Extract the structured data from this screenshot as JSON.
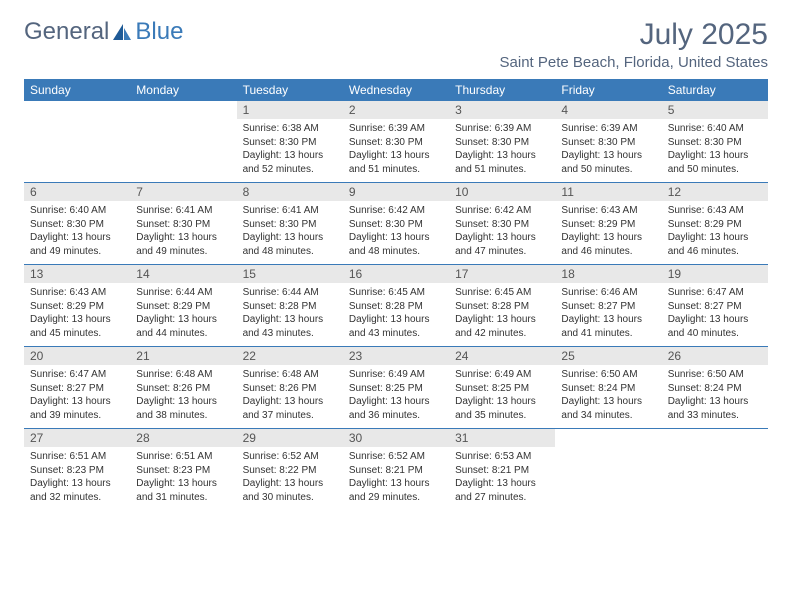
{
  "brand": {
    "part1": "General",
    "part2": "Blue"
  },
  "title": "July 2025",
  "location": "Saint Pete Beach, Florida, United States",
  "colors": {
    "header_bg": "#3a7ab8",
    "header_text": "#ffffff",
    "daynum_bg": "#e8e8e8",
    "title_color": "#54657e",
    "rule_color": "#3a7ab8"
  },
  "columns": [
    "Sunday",
    "Monday",
    "Tuesday",
    "Wednesday",
    "Thursday",
    "Friday",
    "Saturday"
  ],
  "weeks": [
    [
      {
        "n": "",
        "sr": "",
        "ss": "",
        "dl": ""
      },
      {
        "n": "",
        "sr": "",
        "ss": "",
        "dl": ""
      },
      {
        "n": "1",
        "sr": "Sunrise: 6:38 AM",
        "ss": "Sunset: 8:30 PM",
        "dl": "Daylight: 13 hours and 52 minutes."
      },
      {
        "n": "2",
        "sr": "Sunrise: 6:39 AM",
        "ss": "Sunset: 8:30 PM",
        "dl": "Daylight: 13 hours and 51 minutes."
      },
      {
        "n": "3",
        "sr": "Sunrise: 6:39 AM",
        "ss": "Sunset: 8:30 PM",
        "dl": "Daylight: 13 hours and 51 minutes."
      },
      {
        "n": "4",
        "sr": "Sunrise: 6:39 AM",
        "ss": "Sunset: 8:30 PM",
        "dl": "Daylight: 13 hours and 50 minutes."
      },
      {
        "n": "5",
        "sr": "Sunrise: 6:40 AM",
        "ss": "Sunset: 8:30 PM",
        "dl": "Daylight: 13 hours and 50 minutes."
      }
    ],
    [
      {
        "n": "6",
        "sr": "Sunrise: 6:40 AM",
        "ss": "Sunset: 8:30 PM",
        "dl": "Daylight: 13 hours and 49 minutes."
      },
      {
        "n": "7",
        "sr": "Sunrise: 6:41 AM",
        "ss": "Sunset: 8:30 PM",
        "dl": "Daylight: 13 hours and 49 minutes."
      },
      {
        "n": "8",
        "sr": "Sunrise: 6:41 AM",
        "ss": "Sunset: 8:30 PM",
        "dl": "Daylight: 13 hours and 48 minutes."
      },
      {
        "n": "9",
        "sr": "Sunrise: 6:42 AM",
        "ss": "Sunset: 8:30 PM",
        "dl": "Daylight: 13 hours and 48 minutes."
      },
      {
        "n": "10",
        "sr": "Sunrise: 6:42 AM",
        "ss": "Sunset: 8:30 PM",
        "dl": "Daylight: 13 hours and 47 minutes."
      },
      {
        "n": "11",
        "sr": "Sunrise: 6:43 AM",
        "ss": "Sunset: 8:29 PM",
        "dl": "Daylight: 13 hours and 46 minutes."
      },
      {
        "n": "12",
        "sr": "Sunrise: 6:43 AM",
        "ss": "Sunset: 8:29 PM",
        "dl": "Daylight: 13 hours and 46 minutes."
      }
    ],
    [
      {
        "n": "13",
        "sr": "Sunrise: 6:43 AM",
        "ss": "Sunset: 8:29 PM",
        "dl": "Daylight: 13 hours and 45 minutes."
      },
      {
        "n": "14",
        "sr": "Sunrise: 6:44 AM",
        "ss": "Sunset: 8:29 PM",
        "dl": "Daylight: 13 hours and 44 minutes."
      },
      {
        "n": "15",
        "sr": "Sunrise: 6:44 AM",
        "ss": "Sunset: 8:28 PM",
        "dl": "Daylight: 13 hours and 43 minutes."
      },
      {
        "n": "16",
        "sr": "Sunrise: 6:45 AM",
        "ss": "Sunset: 8:28 PM",
        "dl": "Daylight: 13 hours and 43 minutes."
      },
      {
        "n": "17",
        "sr": "Sunrise: 6:45 AM",
        "ss": "Sunset: 8:28 PM",
        "dl": "Daylight: 13 hours and 42 minutes."
      },
      {
        "n": "18",
        "sr": "Sunrise: 6:46 AM",
        "ss": "Sunset: 8:27 PM",
        "dl": "Daylight: 13 hours and 41 minutes."
      },
      {
        "n": "19",
        "sr": "Sunrise: 6:47 AM",
        "ss": "Sunset: 8:27 PM",
        "dl": "Daylight: 13 hours and 40 minutes."
      }
    ],
    [
      {
        "n": "20",
        "sr": "Sunrise: 6:47 AM",
        "ss": "Sunset: 8:27 PM",
        "dl": "Daylight: 13 hours and 39 minutes."
      },
      {
        "n": "21",
        "sr": "Sunrise: 6:48 AM",
        "ss": "Sunset: 8:26 PM",
        "dl": "Daylight: 13 hours and 38 minutes."
      },
      {
        "n": "22",
        "sr": "Sunrise: 6:48 AM",
        "ss": "Sunset: 8:26 PM",
        "dl": "Daylight: 13 hours and 37 minutes."
      },
      {
        "n": "23",
        "sr": "Sunrise: 6:49 AM",
        "ss": "Sunset: 8:25 PM",
        "dl": "Daylight: 13 hours and 36 minutes."
      },
      {
        "n": "24",
        "sr": "Sunrise: 6:49 AM",
        "ss": "Sunset: 8:25 PM",
        "dl": "Daylight: 13 hours and 35 minutes."
      },
      {
        "n": "25",
        "sr": "Sunrise: 6:50 AM",
        "ss": "Sunset: 8:24 PM",
        "dl": "Daylight: 13 hours and 34 minutes."
      },
      {
        "n": "26",
        "sr": "Sunrise: 6:50 AM",
        "ss": "Sunset: 8:24 PM",
        "dl": "Daylight: 13 hours and 33 minutes."
      }
    ],
    [
      {
        "n": "27",
        "sr": "Sunrise: 6:51 AM",
        "ss": "Sunset: 8:23 PM",
        "dl": "Daylight: 13 hours and 32 minutes."
      },
      {
        "n": "28",
        "sr": "Sunrise: 6:51 AM",
        "ss": "Sunset: 8:23 PM",
        "dl": "Daylight: 13 hours and 31 minutes."
      },
      {
        "n": "29",
        "sr": "Sunrise: 6:52 AM",
        "ss": "Sunset: 8:22 PM",
        "dl": "Daylight: 13 hours and 30 minutes."
      },
      {
        "n": "30",
        "sr": "Sunrise: 6:52 AM",
        "ss": "Sunset: 8:21 PM",
        "dl": "Daylight: 13 hours and 29 minutes."
      },
      {
        "n": "31",
        "sr": "Sunrise: 6:53 AM",
        "ss": "Sunset: 8:21 PM",
        "dl": "Daylight: 13 hours and 27 minutes."
      },
      {
        "n": "",
        "sr": "",
        "ss": "",
        "dl": ""
      },
      {
        "n": "",
        "sr": "",
        "ss": "",
        "dl": ""
      }
    ]
  ]
}
